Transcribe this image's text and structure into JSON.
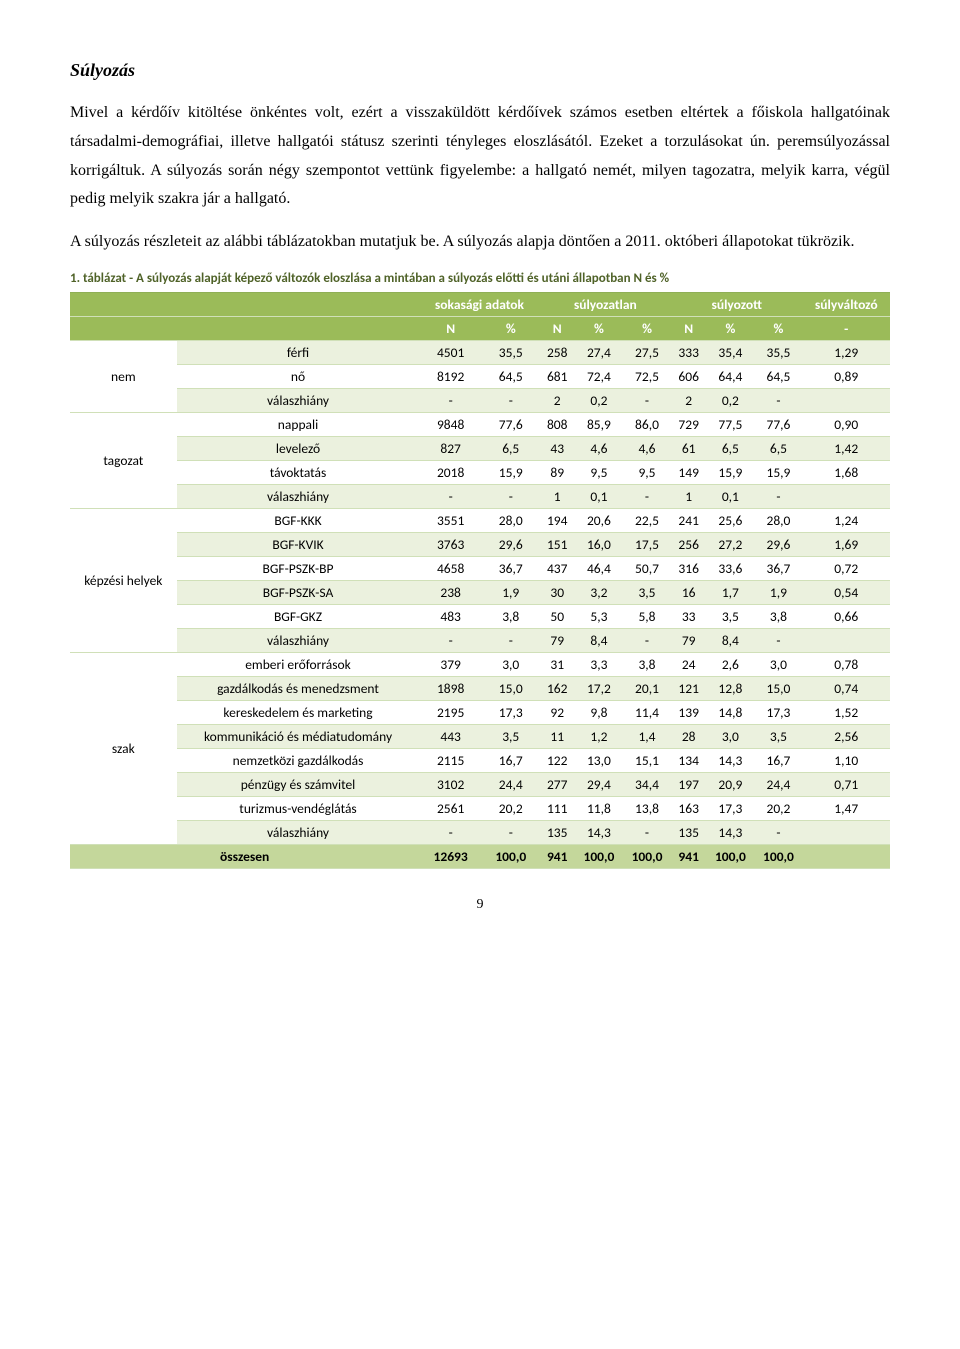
{
  "title": "Súlyozás",
  "para1": "Mivel a kérdőív kitöltése önkéntes volt, ezért a visszaküldött kérdőívek számos esetben eltértek a főiskola hallgatóinak társadalmi-demográfiai, illetve hallgatói státusz szerinti tényleges eloszlásától. Ezeket a torzulásokat ún. peremsúlyozással korrigáltuk. A súlyozás során négy szempontot vettünk figyelembe: a hallgató nemét, milyen tagozatra, melyik karra, végül pedig melyik szakra jár a hallgató.",
  "para2": "A súlyozás részleteit az alábbi táblázatokban mutatjuk be. A súlyozás alapja döntően a 2011. októberi állapotokat tükrözik.",
  "caption": "1. táblázat - A súlyozás alapját képező változók eloszlása a mintában a súlyozás előtti és utáni állapotban N és %",
  "headers": {
    "group1": "sokasági adatok",
    "group2": "súlyozatlan",
    "group3": "súlyozott",
    "group4": "súlyváltozó",
    "sub": [
      "N",
      "%",
      "N",
      "%",
      "%",
      "N",
      "%",
      "%",
      "-"
    ]
  },
  "groups": [
    {
      "name": "nem",
      "rows": [
        {
          "label": "férfi",
          "v": [
            "4501",
            "35,5",
            "258",
            "27,4",
            "27,5",
            "333",
            "35,4",
            "35,5",
            "1,29"
          ],
          "band": "a"
        },
        {
          "label": "nő",
          "v": [
            "8192",
            "64,5",
            "681",
            "72,4",
            "72,5",
            "606",
            "64,4",
            "64,5",
            "0,89"
          ],
          "band": "b"
        },
        {
          "label": "válaszhiány",
          "v": [
            "-",
            "-",
            "2",
            "0,2",
            "-",
            "2",
            "0,2",
            "-",
            ""
          ],
          "band": "a"
        }
      ]
    },
    {
      "name": "tagozat",
      "rows": [
        {
          "label": "nappali",
          "v": [
            "9848",
            "77,6",
            "808",
            "85,9",
            "86,0",
            "729",
            "77,5",
            "77,6",
            "0,90"
          ],
          "band": "b"
        },
        {
          "label": "levelező",
          "v": [
            "827",
            "6,5",
            "43",
            "4,6",
            "4,6",
            "61",
            "6,5",
            "6,5",
            "1,42"
          ],
          "band": "a"
        },
        {
          "label": "távoktatás",
          "v": [
            "2018",
            "15,9",
            "89",
            "9,5",
            "9,5",
            "149",
            "15,9",
            "15,9",
            "1,68"
          ],
          "band": "b"
        },
        {
          "label": "válaszhiány",
          "v": [
            "-",
            "-",
            "1",
            "0,1",
            "-",
            "1",
            "0,1",
            "-",
            ""
          ],
          "band": "a"
        }
      ]
    },
    {
      "name": "képzési helyek",
      "rows": [
        {
          "label": "BGF-KKK",
          "v": [
            "3551",
            "28,0",
            "194",
            "20,6",
            "22,5",
            "241",
            "25,6",
            "28,0",
            "1,24"
          ],
          "band": "b"
        },
        {
          "label": "BGF-KVIK",
          "v": [
            "3763",
            "29,6",
            "151",
            "16,0",
            "17,5",
            "256",
            "27,2",
            "29,6",
            "1,69"
          ],
          "band": "a"
        },
        {
          "label": "BGF-PSZK-BP",
          "v": [
            "4658",
            "36,7",
            "437",
            "46,4",
            "50,7",
            "316",
            "33,6",
            "36,7",
            "0,72"
          ],
          "band": "b"
        },
        {
          "label": "BGF-PSZK-SA",
          "v": [
            "238",
            "1,9",
            "30",
            "3,2",
            "3,5",
            "16",
            "1,7",
            "1,9",
            "0,54"
          ],
          "band": "a"
        },
        {
          "label": "BGF-GKZ",
          "v": [
            "483",
            "3,8",
            "50",
            "5,3",
            "5,8",
            "33",
            "3,5",
            "3,8",
            "0,66"
          ],
          "band": "b"
        },
        {
          "label": "válaszhiány",
          "v": [
            "-",
            "-",
            "79",
            "8,4",
            "-",
            "79",
            "8,4",
            "-",
            ""
          ],
          "band": "a"
        }
      ]
    },
    {
      "name": "szak",
      "rows": [
        {
          "label": "emberi erőforrások",
          "v": [
            "379",
            "3,0",
            "31",
            "3,3",
            "3,8",
            "24",
            "2,6",
            "3,0",
            "0,78"
          ],
          "band": "b"
        },
        {
          "label": "gazdálkodás és menedzsment",
          "v": [
            "1898",
            "15,0",
            "162",
            "17,2",
            "20,1",
            "121",
            "12,8",
            "15,0",
            "0,74"
          ],
          "band": "a"
        },
        {
          "label": "kereskedelem és marketing",
          "v": [
            "2195",
            "17,3",
            "92",
            "9,8",
            "11,4",
            "139",
            "14,8",
            "17,3",
            "1,52"
          ],
          "band": "b"
        },
        {
          "label": "kommunikáció és médiatudomány",
          "v": [
            "443",
            "3,5",
            "11",
            "1,2",
            "1,4",
            "28",
            "3,0",
            "3,5",
            "2,56"
          ],
          "band": "a"
        },
        {
          "label": "nemzetközi gazdálkodás",
          "v": [
            "2115",
            "16,7",
            "122",
            "13,0",
            "15,1",
            "134",
            "14,3",
            "16,7",
            "1,10"
          ],
          "band": "b"
        },
        {
          "label": "pénzügy és számvitel",
          "v": [
            "3102",
            "24,4",
            "277",
            "29,4",
            "34,4",
            "197",
            "20,9",
            "24,4",
            "0,71"
          ],
          "band": "a"
        },
        {
          "label": "turizmus-vendéglátás",
          "v": [
            "2561",
            "20,2",
            "111",
            "11,8",
            "13,8",
            "163",
            "17,3",
            "20,2",
            "1,47"
          ],
          "band": "b"
        },
        {
          "label": "válaszhiány",
          "v": [
            "-",
            "-",
            "135",
            "14,3",
            "-",
            "135",
            "14,3",
            "-",
            ""
          ],
          "band": "a"
        }
      ]
    }
  ],
  "total": {
    "label": "összesen",
    "v": [
      "12693",
      "100,0",
      "941",
      "100,0",
      "100,0",
      "941",
      "100,0",
      "100,0",
      ""
    ]
  },
  "pagenum": "9"
}
